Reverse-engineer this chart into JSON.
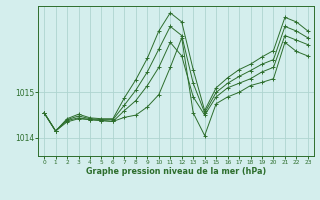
{
  "title": "Graphe pression niveau de la mer (hPa)",
  "bg_color": "#d4eeed",
  "grid_color": "#aed4d0",
  "line_color": "#2d6e2d",
  "xlim": [
    -0.5,
    23.5
  ],
  "ylim": [
    1013.6,
    1016.9
  ],
  "yticks": [
    1014,
    1015
  ],
  "xticks": [
    0,
    1,
    2,
    3,
    4,
    5,
    6,
    7,
    8,
    9,
    10,
    11,
    12,
    13,
    14,
    15,
    16,
    17,
    18,
    19,
    20,
    21,
    22,
    23
  ],
  "series": [
    [
      1014.55,
      1014.15,
      1014.35,
      1014.42,
      1014.4,
      1014.38,
      1014.36,
      1014.45,
      1014.5,
      1014.68,
      1014.95,
      1015.55,
      1016.2,
      1014.55,
      1014.05,
      1014.75,
      1014.9,
      1015.0,
      1015.15,
      1015.22,
      1015.3,
      1016.1,
      1015.9,
      1015.8
    ],
    [
      1014.55,
      1014.15,
      1014.38,
      1014.44,
      1014.4,
      1014.38,
      1014.36,
      1014.6,
      1014.82,
      1015.15,
      1015.55,
      1016.1,
      1015.8,
      1014.9,
      1014.5,
      1014.9,
      1015.1,
      1015.2,
      1015.3,
      1015.45,
      1015.55,
      1016.25,
      1016.15,
      1016.05
    ],
    [
      1014.55,
      1014.15,
      1014.4,
      1014.48,
      1014.42,
      1014.4,
      1014.4,
      1014.72,
      1015.05,
      1015.45,
      1015.95,
      1016.45,
      1016.25,
      1015.2,
      1014.55,
      1015.0,
      1015.2,
      1015.35,
      1015.48,
      1015.62,
      1015.72,
      1016.45,
      1016.35,
      1016.2
    ],
    [
      1014.55,
      1014.15,
      1014.42,
      1014.52,
      1014.44,
      1014.42,
      1014.42,
      1014.88,
      1015.28,
      1015.75,
      1016.35,
      1016.75,
      1016.55,
      1015.5,
      1014.6,
      1015.1,
      1015.32,
      1015.5,
      1015.62,
      1015.78,
      1015.92,
      1016.65,
      1016.55,
      1016.35
    ]
  ]
}
